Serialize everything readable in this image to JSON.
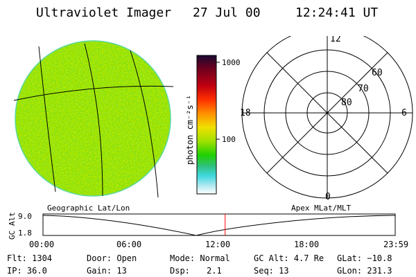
{
  "header": {
    "instrument": "Ultraviolet Imager",
    "date": "27 Jul 00",
    "time": "12:24:41 UT"
  },
  "colorbar": {
    "unit_label": "photon cm⁻²s⁻¹",
    "ticks": [
      "1000",
      "100"
    ],
    "colors": [
      "#1a0a30",
      "#6a0020",
      "#c00010",
      "#ff3000",
      "#ff9000",
      "#f0e000",
      "#a0e000",
      "#20d000",
      "#30c080",
      "#40d8e0",
      "#b0e8f0",
      "#ffffff"
    ]
  },
  "polar": {
    "mlt_labels": [
      "12",
      "18",
      "6",
      "0"
    ],
    "mlat_labels": [
      "60",
      "70",
      "80"
    ]
  },
  "sections": {
    "left": "Geographic Lat/Lon",
    "right": "Apex MLat/MLT"
  },
  "altplot": {
    "ylabel": "GC Alt",
    "yticks": [
      "9.0",
      "1.8"
    ],
    "xticks": [
      "00:00",
      "06:00",
      "12:00",
      "18:00",
      "23:59"
    ],
    "marker_time_hours": 12.41,
    "marker_color": "#ff0000"
  },
  "info": {
    "flt": "Flt: 1304",
    "ip": "IP: 36.0",
    "door": "Door: Open",
    "gain": "Gain: 13",
    "mode": "Mode: Normal",
    "dsp_label": "Dsp:",
    "dsp_value": "2.1",
    "gcalt": "GC Alt: 4.7 Re",
    "seq": "Seq: 13",
    "glat": "GLat: −10.8",
    "glon": "GLon: 231.3"
  }
}
